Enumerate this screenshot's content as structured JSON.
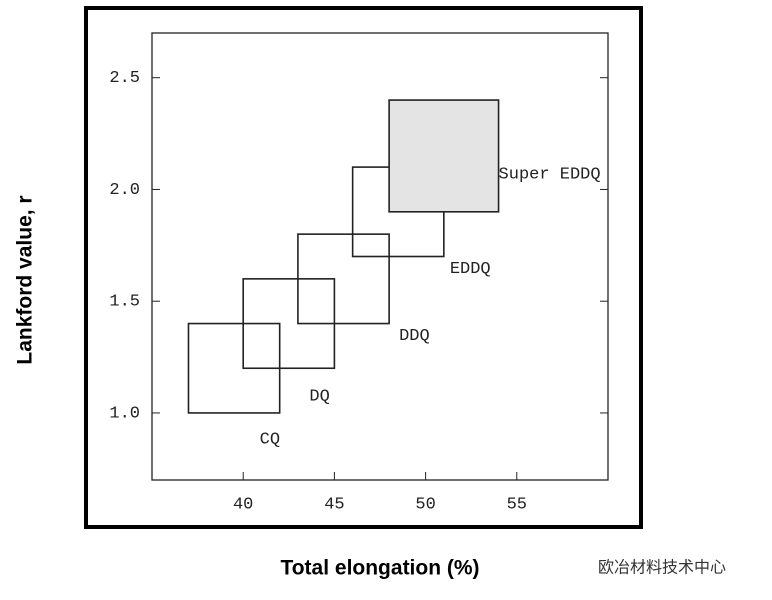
{
  "chart_data": {
    "type": "rect",
    "x_label": "Total elongation (%)",
    "y_label": "Lankford value, r",
    "watermark": "欧冶材料技术中心",
    "xlim": [
      35,
      60
    ],
    "ylim": [
      0.7,
      2.7
    ],
    "xticks": [
      40,
      45,
      50,
      55
    ],
    "yticks": [
      {
        "value": 1.0,
        "label": "1.0"
      },
      1.5,
      {
        "value": 2.0,
        "label": "2.0"
      },
      2.5
    ],
    "series": [
      {
        "name": "CQ",
        "color": "none",
        "x": [
          37,
          42
        ],
        "y": [
          1.0,
          1.4
        ]
      },
      {
        "name": "DQ",
        "color": "none",
        "x": [
          40,
          45
        ],
        "y": [
          1.2,
          1.6
        ]
      },
      {
        "name": "DDQ",
        "color": "none",
        "x": [
          43,
          48
        ],
        "y": [
          1.4,
          1.8
        ]
      },
      {
        "name": "EDDQ",
        "color": "none",
        "x": [
          46,
          51
        ],
        "y": [
          1.7,
          2.1
        ]
      },
      {
        "name": "Super EDDQ",
        "color": "#e4e4e4",
        "x": [
          48,
          54
        ],
        "y": [
          1.9,
          2.4
        ]
      }
    ]
  }
}
